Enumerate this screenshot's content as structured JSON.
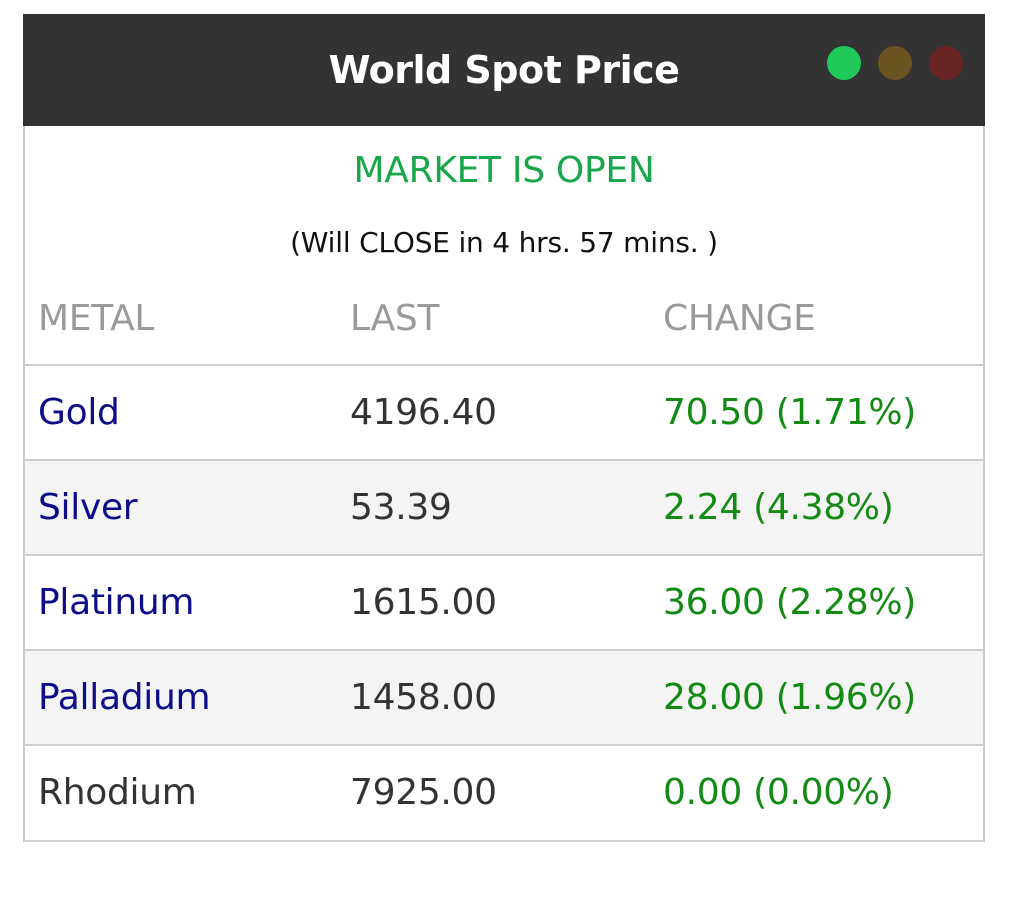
{
  "header": {
    "title": "World Spot Price",
    "window_controls": [
      {
        "name": "green-dot-icon",
        "color": "#1ec95a"
      },
      {
        "name": "olive-dot-icon",
        "color": "#6b5421"
      },
      {
        "name": "red-dot-icon",
        "color": "#6b2424"
      }
    ]
  },
  "market": {
    "status": "MARKET IS OPEN",
    "status_color": "#1aa64b",
    "close_note": "(Will CLOSE in 4 hrs. 57 mins. )"
  },
  "table": {
    "columns": [
      "METAL",
      "LAST",
      "CHANGE"
    ],
    "rows": [
      {
        "metal": "Gold",
        "last": "4196.40",
        "change": "70.50 (1.71%)",
        "metal_color": "#0d0d8a",
        "change_color": "#138a13"
      },
      {
        "metal": "Silver",
        "last": "53.39",
        "change": "2.24 (4.38%)",
        "metal_color": "#0d0d8a",
        "change_color": "#138a13"
      },
      {
        "metal": "Platinum",
        "last": "1615.00",
        "change": "36.00 (2.28%)",
        "metal_color": "#0d0d8a",
        "change_color": "#138a13"
      },
      {
        "metal": "Palladium",
        "last": "1458.00",
        "change": "28.00 (1.96%)",
        "metal_color": "#0d0d8a",
        "change_color": "#138a13"
      },
      {
        "metal": "Rhodium",
        "last": "7925.00",
        "change": "0.00 (0.00%)",
        "metal_color": "#333333",
        "change_color": "#138a13"
      }
    ]
  }
}
